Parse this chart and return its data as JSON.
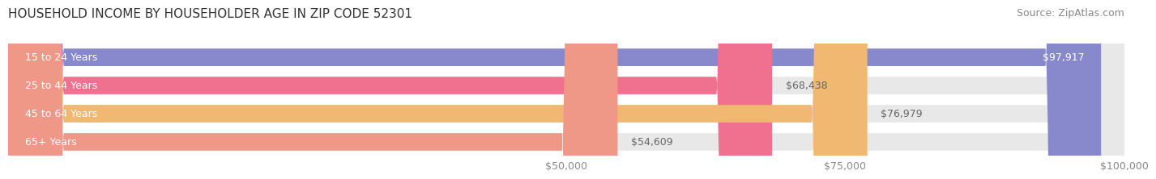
{
  "title": "HOUSEHOLD INCOME BY HOUSEHOLDER AGE IN ZIP CODE 52301",
  "source": "Source: ZipAtlas.com",
  "categories": [
    "15 to 24 Years",
    "25 to 44 Years",
    "45 to 64 Years",
    "65+ Years"
  ],
  "values": [
    97917,
    68438,
    76979,
    54609
  ],
  "bar_colors": [
    "#8888cc",
    "#f07090",
    "#f0b870",
    "#f09888"
  ],
  "bar_bg_color": "#e8e8e8",
  "background_color": "#ffffff",
  "xlim": [
    0,
    100000
  ],
  "xticks": [
    50000,
    75000,
    100000
  ],
  "xtick_labels": [
    "$50,000",
    "$75,000",
    "$100,000"
  ],
  "value_labels": [
    "$97,917",
    "$68,438",
    "$76,979",
    "$54,609"
  ],
  "title_fontsize": 11,
  "source_fontsize": 9,
  "bar_label_fontsize": 9,
  "axis_label_fontsize": 9,
  "bar_height": 0.62
}
